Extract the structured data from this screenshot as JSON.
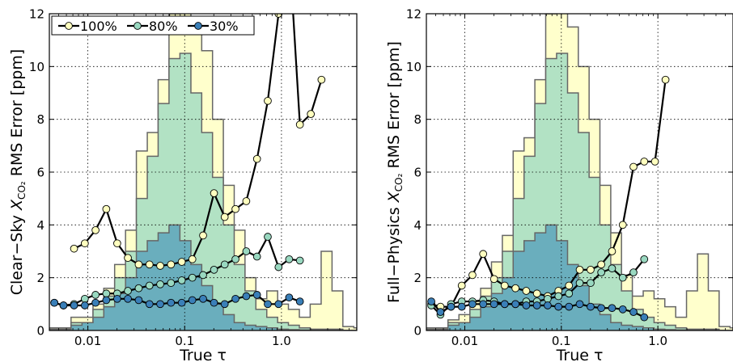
{
  "chart_data": [
    {
      "type": "line",
      "xscale": "log",
      "xlim": [
        0.004,
        6.0
      ],
      "ylim": [
        0,
        12
      ],
      "grid": true,
      "legend_placement": "top-left",
      "xlabel": "True τ",
      "ylabel": "Clear−Sky X_CO₂ RMS Error [ppm]",
      "ylabel_parts": {
        "pre": "Clear−Sky ",
        "var": "X",
        "sub": "CO₂",
        "post": " RMS Error [ppm]"
      },
      "x_ticks": [
        0.01,
        0.1,
        1.0
      ],
      "x_tick_labels": [
        "0.01",
        "0.1",
        "1.0"
      ],
      "y_ticks": [
        0,
        2,
        4,
        6,
        8,
        10,
        12
      ],
      "y_tick_labels": [
        "0",
        "2",
        "4",
        "6",
        "8",
        "10",
        "12"
      ],
      "series": [
        {
          "name": "100%",
          "marker_color": "#ffffbf",
          "x": [
            0.0056,
            0.0072,
            0.0093,
            0.012,
            0.0155,
            0.0201,
            0.0259,
            0.0335,
            0.0433,
            0.0559,
            0.0722,
            0.0933,
            0.12,
            0.155,
            0.201,
            0.259,
            0.335,
            0.433,
            0.559,
            0.722,
            0.933,
            1.2,
            1.55,
            2.01,
            2.59,
            3.35,
            4.33,
            5.59
          ],
          "y": [
            null,
            3.1,
            3.3,
            3.8,
            4.6,
            3.3,
            2.75,
            2.5,
            2.5,
            2.45,
            2.5,
            2.6,
            2.7,
            3.6,
            5.2,
            4.3,
            4.6,
            4.9,
            6.5,
            8.7,
            12.0,
            14.5,
            7.8,
            8.2,
            9.5,
            null,
            null,
            null
          ]
        },
        {
          "name": "80%",
          "marker_color": "#99d8c0",
          "x": [
            0.0045,
            0.0056,
            0.0072,
            0.0093,
            0.012,
            0.0155,
            0.0201,
            0.0259,
            0.0335,
            0.0433,
            0.0559,
            0.0722,
            0.0933,
            0.12,
            0.155,
            0.201,
            0.259,
            0.335,
            0.433,
            0.559,
            0.722,
            0.933,
            1.2,
            1.55,
            2.01,
            2.59,
            3.35,
            4.33
          ],
          "y": [
            1.05,
            0.95,
            1.0,
            1.2,
            1.35,
            1.4,
            1.4,
            1.5,
            1.6,
            1.7,
            1.75,
            1.8,
            1.9,
            2.0,
            2.1,
            2.3,
            2.5,
            2.7,
            3.0,
            2.8,
            3.55,
            2.4,
            2.7,
            2.65,
            null,
            null,
            null,
            null
          ]
        },
        {
          "name": "30%",
          "marker_color": "#3a7fb8",
          "x": [
            0.0045,
            0.0056,
            0.0072,
            0.0093,
            0.012,
            0.0155,
            0.0201,
            0.0259,
            0.0335,
            0.0433,
            0.0559,
            0.0722,
            0.0933,
            0.12,
            0.155,
            0.201,
            0.259,
            0.335,
            0.433,
            0.559,
            0.722,
            0.933,
            1.2,
            1.55,
            2.01,
            2.59,
            3.35,
            4.33
          ],
          "y": [
            1.05,
            0.95,
            0.95,
            0.95,
            1.05,
            1.15,
            1.2,
            1.2,
            1.15,
            1.0,
            1.0,
            1.05,
            1.05,
            1.15,
            1.2,
            1.05,
            1.0,
            1.2,
            1.3,
            1.35,
            1.0,
            1.0,
            1.25,
            1.1,
            null,
            null,
            null,
            null
          ]
        }
      ],
      "histograms": [
        {
          "name": "100%",
          "fill": "#ffffcc",
          "edges": [
            0.004,
            0.0052,
            0.0067,
            0.0087,
            0.0113,
            0.0146,
            0.0189,
            0.0245,
            0.0317,
            0.0411,
            0.0532,
            0.0689,
            0.0893,
            0.116,
            0.15,
            0.194,
            0.251,
            0.325,
            0.42,
            0.544,
            0.705,
            0.913,
            1.18,
            1.53,
            1.98,
            2.57,
            3.33,
            4.31,
            5.59,
            6.0
          ],
          "heights": [
            0.1,
            0.1,
            0.5,
            0.5,
            1.0,
            1.6,
            2.5,
            3.8,
            6.8,
            7.5,
            9.5,
            12.0,
            12.2,
            11.8,
            10.6,
            8.0,
            5.5,
            3.8,
            2.0,
            1.2,
            1.5,
            1.0,
            0.8,
            0.5,
            1.0,
            3.0,
            1.5,
            0.15,
            0.1
          ]
        },
        {
          "name": "80%",
          "fill": "#b2e2c4",
          "edges": [
            0.004,
            0.0052,
            0.0067,
            0.0087,
            0.0113,
            0.0146,
            0.0189,
            0.0245,
            0.0317,
            0.0411,
            0.0532,
            0.0689,
            0.0893,
            0.116,
            0.15,
            0.194,
            0.251,
            0.325,
            0.42,
            0.544,
            0.705,
            0.913,
            1.18,
            1.53,
            1.98,
            2.57,
            3.33,
            4.31,
            5.59,
            6.0
          ],
          "heights": [
            0.05,
            0.05,
            0.3,
            0.3,
            0.8,
            1.3,
            2.0,
            3.0,
            5.0,
            6.6,
            8.6,
            10.3,
            10.5,
            9.0,
            7.5,
            5.8,
            4.0,
            2.5,
            1.5,
            0.8,
            0.5,
            0.3,
            0.2,
            0.1,
            0.05,
            0.05,
            0.05,
            0.0,
            0.0
          ]
        },
        {
          "name": "30%",
          "fill": "#6aaebd",
          "edges": [
            0.004,
            0.0052,
            0.0067,
            0.0087,
            0.0113,
            0.0146,
            0.0189,
            0.0245,
            0.0317,
            0.0411,
            0.0532,
            0.0689,
            0.0893,
            0.116,
            0.15,
            0.194,
            0.251,
            0.325,
            0.42,
            0.544,
            0.705,
            0.913,
            1.18,
            1.53,
            1.98,
            2.57,
            3.33,
            4.31,
            5.59,
            6.0
          ],
          "heights": [
            0.02,
            0.02,
            0.2,
            0.3,
            0.5,
            0.9,
            1.4,
            2.0,
            3.0,
            3.4,
            3.7,
            4.0,
            3.4,
            2.5,
            1.7,
            1.0,
            0.6,
            0.3,
            0.2,
            0.15,
            0.1,
            0.05,
            0.03,
            0.02,
            0.02,
            0.02,
            0.02,
            0.0,
            0.0
          ]
        }
      ]
    },
    {
      "type": "line",
      "xscale": "log",
      "xlim": [
        0.004,
        6.0
      ],
      "ylim": [
        0,
        12
      ],
      "grid": true,
      "xlabel": "True τ",
      "ylabel": "Full−Physics X_CO₂ RMS Error [ppm]",
      "ylabel_parts": {
        "pre": "Full−Physics ",
        "var": "X",
        "sub": "CO₂",
        "post": " RMS Error [ppm]"
      },
      "x_ticks": [
        0.01,
        0.1,
        1.0
      ],
      "x_tick_labels": [
        "0.01",
        "0.1",
        "1.0"
      ],
      "y_ticks": [
        0,
        2,
        4,
        6,
        8,
        10,
        12
      ],
      "y_tick_labels": [
        "0",
        "2",
        "4",
        "6",
        "8",
        "10",
        "12"
      ],
      "series": [
        {
          "name": "100%",
          "marker_color": "#ffffbf",
          "x": [
            0.0045,
            0.0056,
            0.0072,
            0.0093,
            0.012,
            0.0155,
            0.0201,
            0.0259,
            0.0335,
            0.0433,
            0.0559,
            0.0722,
            0.0933,
            0.12,
            0.155,
            0.201,
            0.259,
            0.335,
            0.433,
            0.559,
            0.722,
            0.933,
            1.2,
            1.55,
            2.01,
            2.59,
            3.35,
            4.33,
            5.59
          ],
          "y": [
            1.0,
            0.9,
            0.9,
            1.7,
            2.1,
            2.9,
            1.95,
            1.7,
            1.6,
            1.5,
            1.4,
            1.3,
            1.5,
            1.7,
            2.3,
            2.3,
            2.5,
            3.0,
            4.0,
            6.2,
            6.4,
            6.4,
            9.5,
            null,
            null,
            null,
            null,
            null,
            null
          ]
        },
        {
          "name": "80%",
          "marker_color": "#99d8c0",
          "x": [
            0.0045,
            0.0056,
            0.0072,
            0.0093,
            0.012,
            0.0155,
            0.0201,
            0.0259,
            0.0335,
            0.0433,
            0.0559,
            0.0722,
            0.0933,
            0.12,
            0.155,
            0.201,
            0.259,
            0.335,
            0.433,
            0.559,
            0.722,
            0.933,
            1.2,
            1.55,
            2.01,
            2.59,
            3.35,
            4.33
          ],
          "y": [
            0.95,
            0.6,
            1.0,
            1.1,
            1.1,
            1.15,
            1.1,
            1.0,
            1.0,
            1.1,
            1.1,
            1.2,
            1.3,
            1.4,
            1.8,
            1.8,
            2.2,
            2.35,
            2.0,
            2.2,
            2.7,
            null,
            null,
            null,
            null,
            null,
            null,
            null
          ]
        },
        {
          "name": "30%",
          "marker_color": "#3a7fb8",
          "x": [
            0.0045,
            0.0056,
            0.0072,
            0.0093,
            0.012,
            0.0155,
            0.0201,
            0.0259,
            0.0335,
            0.0433,
            0.0559,
            0.0722,
            0.0933,
            0.12,
            0.155,
            0.201,
            0.259,
            0.335,
            0.433,
            0.559,
            0.722,
            0.933,
            1.2,
            1.55,
            2.01,
            2.59,
            3.35,
            4.33
          ],
          "y": [
            1.1,
            0.7,
            0.9,
            0.9,
            1.0,
            1.0,
            1.0,
            1.0,
            1.0,
            0.95,
            0.95,
            0.95,
            0.9,
            0.9,
            1.0,
            0.9,
            0.85,
            0.85,
            0.8,
            0.7,
            0.5,
            null,
            null,
            null,
            null,
            null,
            null,
            null
          ]
        }
      ],
      "histograms": [
        {
          "name": "100%",
          "fill": "#ffffcc",
          "edges": [
            0.004,
            0.0052,
            0.0067,
            0.0087,
            0.0113,
            0.0146,
            0.0189,
            0.0245,
            0.0317,
            0.0411,
            0.0532,
            0.0689,
            0.0893,
            0.116,
            0.15,
            0.194,
            0.251,
            0.325,
            0.42,
            0.544,
            0.705,
            0.913,
            1.18,
            1.53,
            1.98,
            2.57,
            3.33,
            4.31,
            5.59,
            6.0
          ],
          "heights": [
            0.1,
            0.1,
            0.4,
            0.6,
            1.1,
            1.6,
            2.6,
            3.6,
            6.8,
            7.3,
            9.5,
            12.0,
            12.2,
            11.5,
            10.0,
            8.0,
            5.5,
            3.7,
            2.1,
            1.3,
            1.5,
            1.2,
            0.9,
            0.5,
            1.5,
            2.9,
            1.5,
            0.15,
            0.1
          ]
        },
        {
          "name": "80%",
          "fill": "#b2e2c4",
          "edges": [
            0.004,
            0.0052,
            0.0067,
            0.0087,
            0.0113,
            0.0146,
            0.0189,
            0.0245,
            0.0317,
            0.0411,
            0.0532,
            0.0689,
            0.0893,
            0.116,
            0.15,
            0.194,
            0.251,
            0.325,
            0.42,
            0.544,
            0.705,
            0.913,
            1.18,
            1.53,
            1.98,
            2.57,
            3.33,
            4.31,
            5.59,
            6.0
          ],
          "heights": [
            0.05,
            0.05,
            0.3,
            0.3,
            0.8,
            1.3,
            2.0,
            3.0,
            5.0,
            6.6,
            8.6,
            10.3,
            10.5,
            9.0,
            7.5,
            5.8,
            4.0,
            2.5,
            1.5,
            0.8,
            0.5,
            0.3,
            0.2,
            0.1,
            0.05,
            0.05,
            0.05,
            0.0,
            0.0
          ]
        },
        {
          "name": "30%",
          "fill": "#6aaebd",
          "edges": [
            0.004,
            0.0052,
            0.0067,
            0.0087,
            0.0113,
            0.0146,
            0.0189,
            0.0245,
            0.0317,
            0.0411,
            0.0532,
            0.0689,
            0.0893,
            0.116,
            0.15,
            0.194,
            0.251,
            0.325,
            0.42,
            0.544,
            0.705,
            0.913,
            1.18,
            1.53,
            1.98,
            2.57,
            3.33,
            4.31,
            5.59,
            6.0
          ],
          "heights": [
            0.02,
            0.02,
            0.2,
            0.3,
            0.5,
            0.9,
            1.4,
            2.0,
            3.0,
            3.4,
            3.7,
            4.0,
            3.4,
            2.5,
            1.7,
            1.0,
            0.6,
            0.3,
            0.2,
            0.15,
            0.1,
            0.05,
            0.03,
            0.02,
            0.02,
            0.02,
            0.02,
            0.0,
            0.0
          ]
        }
      ]
    }
  ]
}
